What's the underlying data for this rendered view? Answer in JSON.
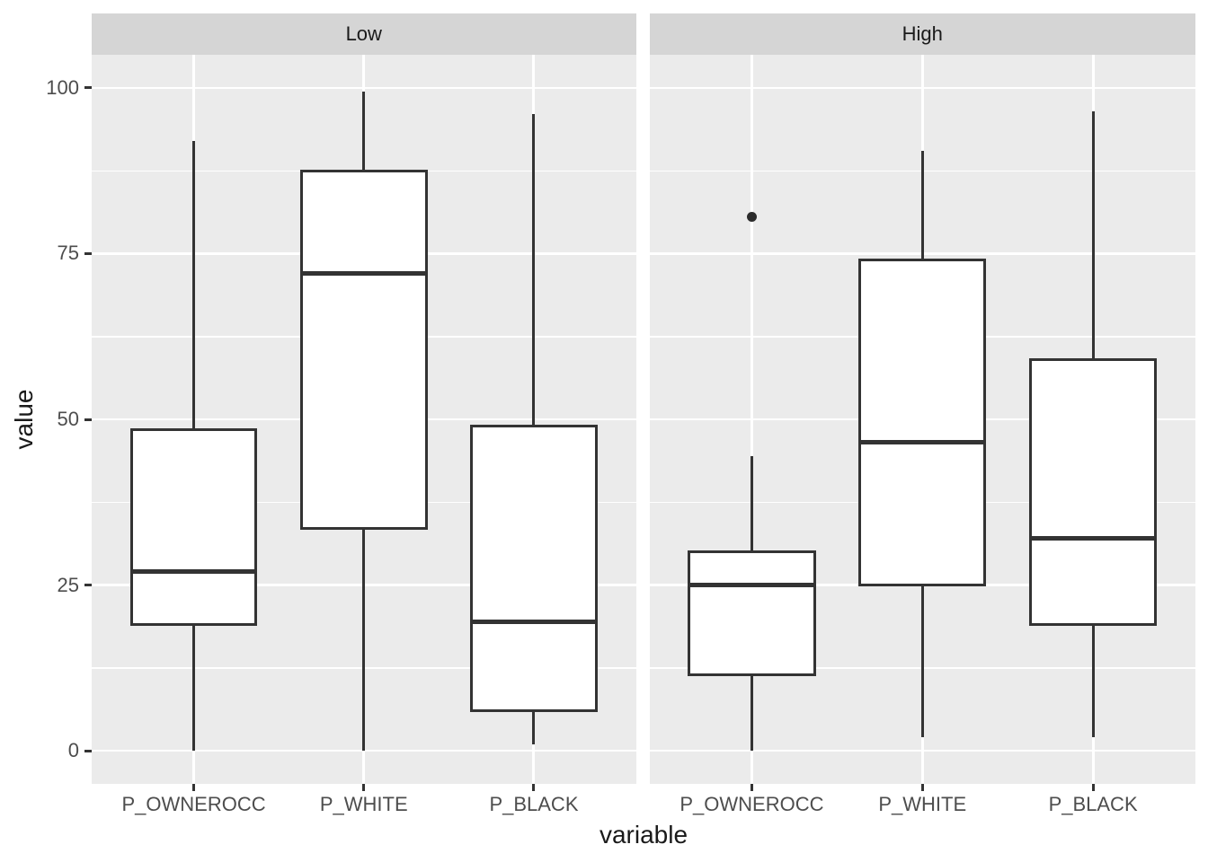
{
  "chart_data": {
    "type": "boxplot",
    "title": "",
    "xlabel": "variable",
    "ylabel": "value",
    "categories": [
      "P_OWNEROCC",
      "P_WHITE",
      "P_BLACK"
    ],
    "y_axis": {
      "ticks": [
        0,
        25,
        50,
        75,
        100
      ],
      "minor_ticks": [
        12.5,
        37.5,
        62.5,
        87.5
      ],
      "range": [
        -5,
        105
      ],
      "grid": "on",
      "major_grid_color": "#ffffff",
      "panel_background": "#ebebeb"
    },
    "facets": [
      {
        "label": "Low",
        "boxes": [
          {
            "category": "P_OWNEROCC",
            "whisker_min": 0,
            "q1": 19,
            "median": 27,
            "q3": 48.5,
            "whisker_max": 92,
            "outliers": []
          },
          {
            "category": "P_WHITE",
            "whisker_min": 0,
            "q1": 33.5,
            "median": 72,
            "q3": 87.5,
            "whisker_max": 99.5,
            "outliers": []
          },
          {
            "category": "P_BLACK",
            "whisker_min": 1,
            "q1": 6,
            "median": 19.5,
            "q3": 49,
            "whisker_max": 96,
            "outliers": []
          }
        ]
      },
      {
        "label": "High",
        "boxes": [
          {
            "category": "P_OWNEROCC",
            "whisker_min": 0,
            "q1": 11.5,
            "median": 25,
            "q3": 30,
            "whisker_max": 44.5,
            "outliers": [
              80.5
            ]
          },
          {
            "category": "P_WHITE",
            "whisker_min": 2,
            "q1": 25,
            "median": 46.5,
            "q3": 74,
            "whisker_max": 90.5,
            "outliers": []
          },
          {
            "category": "P_BLACK",
            "whisker_min": 2,
            "q1": 19,
            "median": 32,
            "q3": 59,
            "whisker_max": 96.5,
            "outliers": []
          }
        ]
      }
    ]
  },
  "colors": {
    "strip_background": "#d5d5d5",
    "panel_background": "#ebebeb",
    "gridline": "#ffffff",
    "box_stroke": "#333333",
    "box_fill": "#ffffff",
    "outlier": "#2b2b2b",
    "tick_text": "#4d4d4d",
    "title_text": "#1a1a1a"
  }
}
